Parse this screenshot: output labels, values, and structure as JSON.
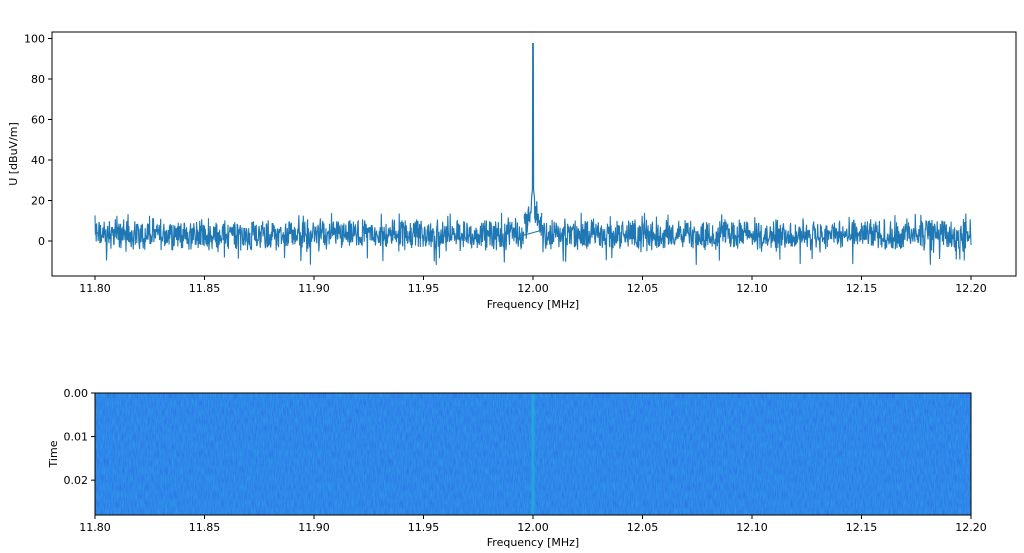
{
  "chart_data": [
    {
      "type": "line",
      "xlabel": "Frequency [MHz]",
      "ylabel": "U [dBuV/m]",
      "xlim": [
        11.8,
        12.2
      ],
      "ylim": [
        -17,
        102
      ],
      "xticks": [
        "11.80",
        "11.85",
        "11.90",
        "11.95",
        "12.00",
        "12.05",
        "12.10",
        "12.15",
        "12.20"
      ],
      "yticks": [
        "0",
        "20",
        "40",
        "60",
        "80",
        "100"
      ],
      "grid": false,
      "series": [
        {
          "color": "#1f77b4",
          "noise_floor_mean": 3,
          "noise_floor_min": -12,
          "noise_floor_max": 14,
          "peak_x": 12.0,
          "peak_y": 97.5,
          "x_start": 11.8,
          "x_end": 12.2
        }
      ]
    },
    {
      "type": "heatmap",
      "xlabel": "Frequency [MHz]",
      "ylabel": "Time",
      "xlim": [
        11.8,
        12.2
      ],
      "ylim": [
        0.028,
        0.0
      ],
      "xticks": [
        "11.80",
        "11.85",
        "11.90",
        "11.95",
        "12.00",
        "12.05",
        "12.10",
        "12.15",
        "12.20"
      ],
      "yticks": [
        "0.00",
        "0.01",
        "0.02"
      ],
      "colormap": "jet",
      "background_color": "#1a4ee6",
      "signal_x": 12.0,
      "signal_color": "#22a7d9"
    }
  ]
}
